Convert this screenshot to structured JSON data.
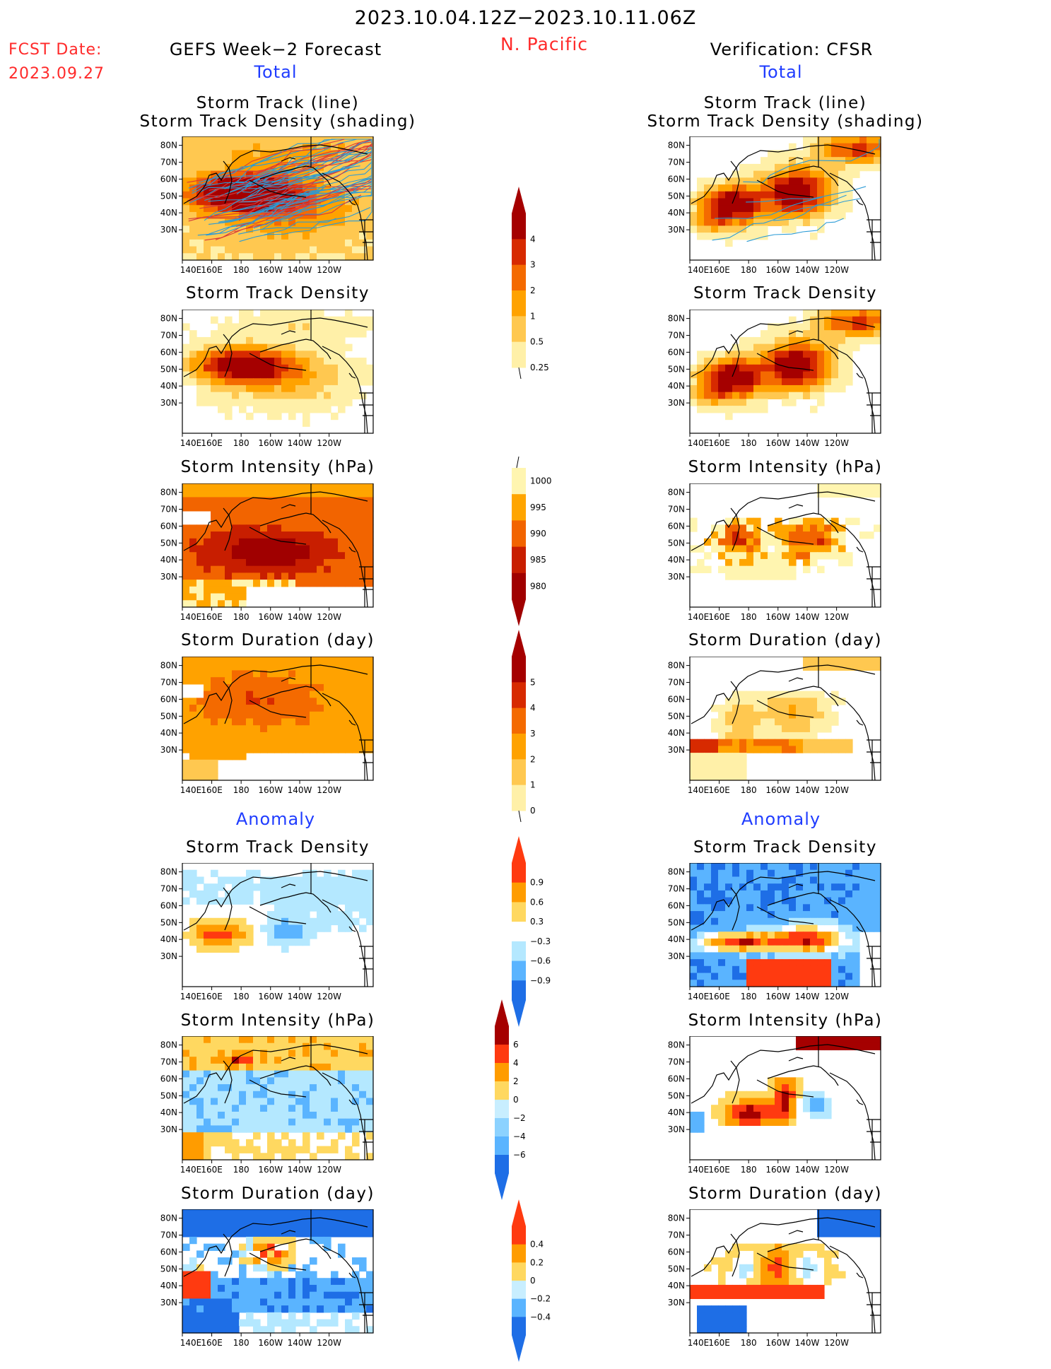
{
  "header": {
    "date_range": "2023.10.04.12Z−2023.10.11.06Z",
    "fcst_label": "FCST Date:",
    "fcst_date": "2023.09.27",
    "left_title": "GEFS Week−2 Forecast",
    "region": "N. Pacific",
    "right_title": "Verification: CFSR",
    "total_label": "Total",
    "anomaly_label": "Anomaly"
  },
  "panel_titles": {
    "track_line": "Storm Track (line)",
    "track_shading": "Storm Track Density (shading)",
    "density": "Storm Track Density",
    "intensity": "Storm Intensity (hPa)",
    "duration": "Storm Duration (day)"
  },
  "map_axes": {
    "lon_ticks": [
      "140E",
      "160E",
      "180",
      "160W",
      "140W",
      "120W"
    ],
    "lat_ticks": [
      "80N",
      "70N",
      "60N",
      "50N",
      "40N",
      "30N"
    ]
  },
  "colorbars": [
    {
      "id": "density",
      "labels": [
        "4",
        "3",
        "2",
        "1",
        "0.5",
        "0.25"
      ],
      "colors": [
        "#a50000",
        "#d72a00",
        "#f46a00",
        "#ffa200",
        "#ffc850",
        "#fff0a8"
      ],
      "lower_extend": "open"
    },
    {
      "id": "intensity",
      "labels": [
        "1000",
        "995",
        "990",
        "985",
        "980"
      ],
      "colors": [
        "#fff5b0",
        "#ffa500",
        "#f26400",
        "#c81e00",
        "#a00000"
      ],
      "upper_extend": "open"
    },
    {
      "id": "duration",
      "labels": [
        "5",
        "4",
        "3",
        "2",
        "1",
        "0"
      ],
      "colors": [
        "#a50000",
        "#d72a00",
        "#f46a00",
        "#ffa200",
        "#ffc850",
        "#fff0a8"
      ],
      "lower_extend": "open"
    },
    {
      "id": "anom_density",
      "labels": [
        "0.9",
        "0.6",
        "0.3",
        "−0.3",
        "−0.6",
        "−0.9"
      ],
      "colors": [
        "#ff3a10",
        "#ff9c00",
        "#ffd860",
        "#ffffff",
        "#b4e8ff",
        "#5ab4ff",
        "#1e6ee6"
      ]
    },
    {
      "id": "anom_intensity",
      "labels": [
        "6",
        "4",
        "2",
        "0",
        "−2",
        "−4",
        "−6"
      ],
      "colors": [
        "#a50000",
        "#ff3a10",
        "#ff9c00",
        "#ffd860",
        "#c8eeff",
        "#8cd2ff",
        "#5ab4ff",
        "#1e6ee6"
      ]
    },
    {
      "id": "anom_duration",
      "labels": [
        "0.4",
        "0.2",
        "0",
        "−0.2",
        "−0.4"
      ],
      "colors": [
        "#ff3a10",
        "#ff9c00",
        "#ffd860",
        "#c8eeff",
        "#5ab4ff",
        "#1e6ee6"
      ]
    }
  ],
  "chart_data": {
    "type": "heatmap",
    "region": "N. Pacific",
    "lon_range": [
      "140E",
      "110W"
    ],
    "lat_range": [
      "25N",
      "85N"
    ],
    "panels": [
      {
        "column": "GEFS Week−2 Forecast",
        "group": "Total",
        "field": "Storm Track (line) / Storm Track Density (shading)",
        "max_value": "4"
      },
      {
        "column": "GEFS Week−2 Forecast",
        "group": "Total",
        "field": "Storm Track Density",
        "max_value": "4"
      },
      {
        "column": "GEFS Week−2 Forecast",
        "group": "Total",
        "field": "Storm Intensity (hPa)",
        "range": [
          "980",
          "1000"
        ]
      },
      {
        "column": "GEFS Week−2 Forecast",
        "group": "Total",
        "field": "Storm Duration (day)",
        "range": [
          "0",
          "5"
        ]
      },
      {
        "column": "GEFS Week−2 Forecast",
        "group": "Anomaly",
        "field": "Storm Track Density",
        "range": [
          "−0.9",
          "0.9"
        ]
      },
      {
        "column": "GEFS Week−2 Forecast",
        "group": "Anomaly",
        "field": "Storm Intensity (hPa)",
        "range": [
          "−6",
          "6"
        ]
      },
      {
        "column": "GEFS Week−2 Forecast",
        "group": "Anomaly",
        "field": "Storm Duration (day)",
        "range": [
          "−0.4",
          "0.4"
        ]
      },
      {
        "column": "Verification: CFSR",
        "group": "Total",
        "field": "Storm Track (line) / Storm Track Density (shading)",
        "max_value": "4"
      },
      {
        "column": "Verification: CFSR",
        "group": "Total",
        "field": "Storm Track Density",
        "max_value": "4"
      },
      {
        "column": "Verification: CFSR",
        "group": "Total",
        "field": "Storm Intensity (hPa)",
        "range": [
          "980",
          "1000"
        ]
      },
      {
        "column": "Verification: CFSR",
        "group": "Total",
        "field": "Storm Duration (day)",
        "range": [
          "0",
          "5"
        ]
      },
      {
        "column": "Verification: CFSR",
        "group": "Anomaly",
        "field": "Storm Track Density",
        "range": [
          "−0.9",
          "0.9"
        ]
      },
      {
        "column": "Verification: CFSR",
        "group": "Anomaly",
        "field": "Storm Intensity (hPa)",
        "range": [
          "−6",
          "6"
        ]
      },
      {
        "column": "Verification: CFSR",
        "group": "Anomaly",
        "field": "Storm Duration (day)",
        "range": [
          "−0.4",
          "0.4"
        ]
      }
    ]
  }
}
